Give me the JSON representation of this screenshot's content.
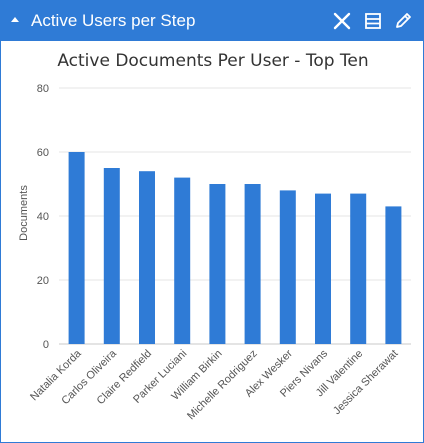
{
  "panel": {
    "title": "Active Users per Step",
    "accent": "#2f7bd6",
    "icons": [
      "collapse-icon",
      "close-icon",
      "table-icon",
      "edit-icon"
    ]
  },
  "chart_data": {
    "type": "bar",
    "title": "Active Documents Per User - Top Ten",
    "xlabel": "",
    "ylabel": "Documents",
    "ylim": [
      0,
      80
    ],
    "yticks": [
      0,
      20,
      40,
      60,
      80
    ],
    "grid": true,
    "bar_color": "#2f7bd6",
    "categories": [
      "Natalia Korda",
      "Carlos Oliveira",
      "Claire Redfield",
      "Parker Luciani",
      "William Birkin",
      "Michelle Rodriguez",
      "Alex Wesker",
      "Piers Nivans",
      "Jill Valentine",
      "Jessica Sherawat"
    ],
    "values": [
      60,
      55,
      54,
      52,
      50,
      50,
      48,
      47,
      47,
      43
    ]
  }
}
